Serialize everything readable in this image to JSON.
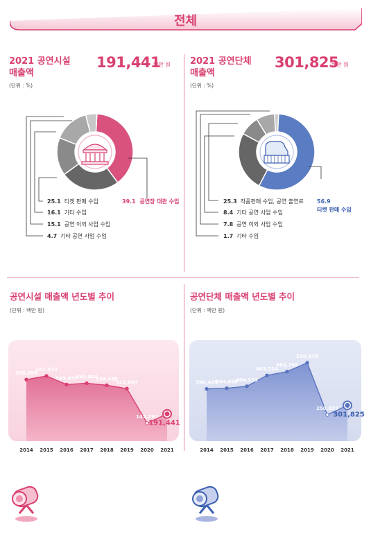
{
  "header": {
    "title": "전체"
  },
  "facility": {
    "title_line1": "2021 공연시설",
    "title_line2": "매출액",
    "total": "191,441",
    "total_unit": "백만 원",
    "unit_note": "(단위 : %)",
    "legend": [
      {
        "value": "25.1",
        "label": "티켓 판매 수입"
      },
      {
        "value": "16.1",
        "label": "기타 수입"
      },
      {
        "value": "15.1",
        "label": "공연 이외 사업 수입"
      },
      {
        "value": "4.7",
        "label": "기타 공연 사업 수입"
      }
    ],
    "callout": {
      "value": "39.1",
      "label": "공연장 대관 수입"
    }
  },
  "group": {
    "title_line1": "2021 공연단체",
    "title_line2": "매출액",
    "total": "301,825",
    "total_unit": "백만 원",
    "unit_note": "(단위 : %)",
    "legend": [
      {
        "value": "25.3",
        "label": "작품판매 수입, 공연 출연료"
      },
      {
        "value": "8.4",
        "label": "기타 공연 사업 수입"
      },
      {
        "value": "7.8",
        "label": "공연 이외 사업 수입"
      },
      {
        "value": "1.7",
        "label": "기타 수입"
      }
    ],
    "callout": {
      "value": "56.9",
      "label": "티켓 판매 수입"
    }
  },
  "trend_facility": {
    "title": "공연시설 매출액 년도별 추이",
    "unit_note": "(단위 : 백만 원)"
  },
  "trend_group": {
    "title": "공연단체 매출액 년도별 추이",
    "unit_note": "(단위 : 백만 원)"
  },
  "chart_data": [
    {
      "type": "pie",
      "categories": [
        "공연장 대관 수입",
        "티켓 판매 수입",
        "기타 수입",
        "공연 이외 사업 수입",
        "기타 공연 사업 수입"
      ],
      "values": [
        39.1,
        25.1,
        16.1,
        15.1,
        4.7
      ],
      "colors": [
        "#d9527e",
        "#666666",
        "#8a8a8a",
        "#a8a8a8",
        "#c8c8c8"
      ]
    },
    {
      "type": "pie",
      "categories": [
        "티켓 판매 수입",
        "작품판매 수입, 공연 출연료",
        "기타 공연 사업 수입",
        "공연 이외 사업 수입",
        "기타 수입"
      ],
      "values": [
        56.9,
        25.3,
        8.4,
        7.8,
        1.7
      ],
      "colors": [
        "#5a7cc2",
        "#666666",
        "#8a8a8a",
        "#a8a8a8",
        "#cccccc"
      ]
    },
    {
      "type": "area",
      "x": [
        "2014",
        "2015",
        "2016",
        "2017",
        "2018",
        "2019",
        "2020",
        "2021"
      ],
      "series": [
        {
          "values": [
            368890,
            387433,
            343457,
            350004,
            339489,
            322007,
            143793,
            191441
          ]
        }
      ],
      "labels": [
        "368,890",
        "387,433",
        "343,457",
        "350,004",
        "339,489",
        "322,007",
        "143,793",
        "191,441"
      ],
      "color": "#d9527e"
    },
    {
      "type": "area",
      "x": [
        "2014",
        "2015",
        "2016",
        "2017",
        "2018",
        "2019",
        "2020",
        "2021"
      ],
      "series": [
        {
          "values": [
            390425,
            394058,
            404533,
            463214,
            483765,
            530978,
            250833,
            301825
          ]
        }
      ],
      "labels": [
        "390,425",
        "394,058",
        "404,533",
        "463,214",
        "483,765",
        "530,978",
        "250,833",
        "301,825"
      ],
      "color": "#5a74c0"
    }
  ]
}
